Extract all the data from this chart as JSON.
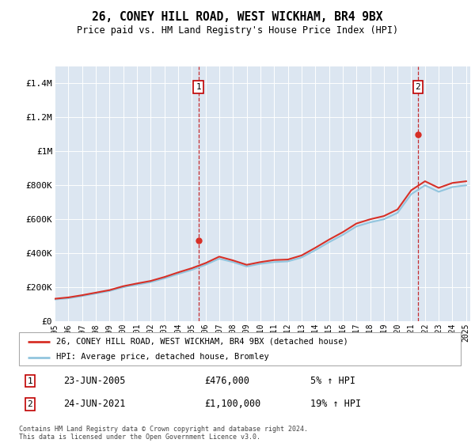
{
  "title": "26, CONEY HILL ROAD, WEST WICKHAM, BR4 9BX",
  "subtitle": "Price paid vs. HM Land Registry's House Price Index (HPI)",
  "bg_color": "#dce6f1",
  "plot_bg_color": "#dce6f1",
  "ylabel_values": [
    "£0",
    "£200K",
    "£400K",
    "£600K",
    "£800K",
    "£1M",
    "£1.2M",
    "£1.4M"
  ],
  "yticks": [
    0,
    200000,
    400000,
    600000,
    800000,
    1000000,
    1200000,
    1400000
  ],
  "ylim": [
    0,
    1500000
  ],
  "hpi_color": "#92c5de",
  "price_color": "#d73027",
  "legend_label_price": "26, CONEY HILL ROAD, WEST WICKHAM, BR4 9BX (detached house)",
  "legend_label_hpi": "HPI: Average price, detached house, Bromley",
  "sale1_date": "23-JUN-2005",
  "sale1_price": "£476,000",
  "sale1_pct": "5% ↑ HPI",
  "sale1_year": 2005.48,
  "sale1_value": 476000,
  "sale2_date": "24-JUN-2021",
  "sale2_price": "£1,100,000",
  "sale2_pct": "19% ↑ HPI",
  "sale2_year": 2021.48,
  "sale2_value": 1100000,
  "footer": "Contains HM Land Registry data © Crown copyright and database right 2024.\nThis data is licensed under the Open Government Licence v3.0.",
  "hpi_years": [
    1995,
    1996,
    1997,
    1998,
    1999,
    2000,
    2001,
    2002,
    2003,
    2004,
    2005,
    2006,
    2007,
    2008,
    2009,
    2010,
    2011,
    2012,
    2013,
    2014,
    2015,
    2016,
    2017,
    2018,
    2019,
    2020,
    2021,
    2022,
    2023,
    2024,
    2025
  ],
  "hpi_values": [
    128000,
    135000,
    148000,
    163000,
    178000,
    200000,
    215000,
    230000,
    252000,
    278000,
    302000,
    332000,
    368000,
    348000,
    322000,
    338000,
    348000,
    352000,
    375000,
    418000,
    465000,
    508000,
    558000,
    582000,
    600000,
    638000,
    748000,
    800000,
    762000,
    790000,
    800000
  ],
  "price_years": [
    1995,
    1996,
    1997,
    1998,
    1999,
    2000,
    2001,
    2002,
    2003,
    2004,
    2005,
    2006,
    2007,
    2008,
    2009,
    2010,
    2011,
    2012,
    2013,
    2014,
    2015,
    2016,
    2017,
    2018,
    2019,
    2020,
    2021,
    2022,
    2023,
    2024,
    2025
  ],
  "price_values": [
    132000,
    140000,
    153000,
    168000,
    183000,
    206000,
    222000,
    237000,
    260000,
    287000,
    312000,
    342000,
    380000,
    358000,
    332000,
    348000,
    360000,
    363000,
    387000,
    432000,
    480000,
    524000,
    575000,
    600000,
    619000,
    658000,
    771000,
    824000,
    785000,
    814000,
    824000
  ],
  "xtick_years": [
    1995,
    1996,
    1997,
    1998,
    1999,
    2000,
    2001,
    2002,
    2003,
    2004,
    2005,
    2006,
    2007,
    2008,
    2009,
    2010,
    2011,
    2012,
    2013,
    2014,
    2015,
    2016,
    2017,
    2018,
    2019,
    2020,
    2021,
    2022,
    2023,
    2024,
    2025
  ],
  "marker_box_color": "#c00000",
  "grid_color": "#ffffff"
}
